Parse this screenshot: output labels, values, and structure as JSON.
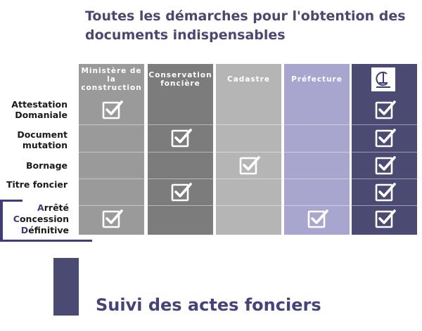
{
  "title": "Toutes les démarches pour l'obtention des documents indispensables",
  "columns": [
    {
      "label": "Ministère de la construction",
      "color": "#9a9a9a"
    },
    {
      "label": "Conservation foncière",
      "color": "#7c7c7c"
    },
    {
      "label": "Cadastre",
      "color": "#b5b5b5"
    },
    {
      "label": "Préfecture",
      "color": "#a8a6cf"
    },
    {
      "label": "",
      "logo": "cl-logo-icon",
      "color": "#4b4a73"
    }
  ],
  "rows": [
    {
      "label": "Attestation Domaniale",
      "checks": [
        true,
        false,
        false,
        false,
        true
      ]
    },
    {
      "label": "Document mutation",
      "checks": [
        false,
        true,
        false,
        false,
        true
      ]
    },
    {
      "label": "Bornage",
      "checks": [
        false,
        false,
        true,
        false,
        true
      ]
    },
    {
      "label": "Titre foncier",
      "checks": [
        false,
        true,
        false,
        false,
        true
      ]
    },
    {
      "label_parts": [
        "A",
        "rrêté",
        "C",
        "oncession",
        "D",
        "éfinitive"
      ],
      "checks": [
        true,
        false,
        false,
        true,
        true
      ]
    }
  ],
  "section_title": "Suivi des actes fonciers",
  "colors": {
    "accent": "#4b4a73",
    "title": "#4a4870"
  }
}
